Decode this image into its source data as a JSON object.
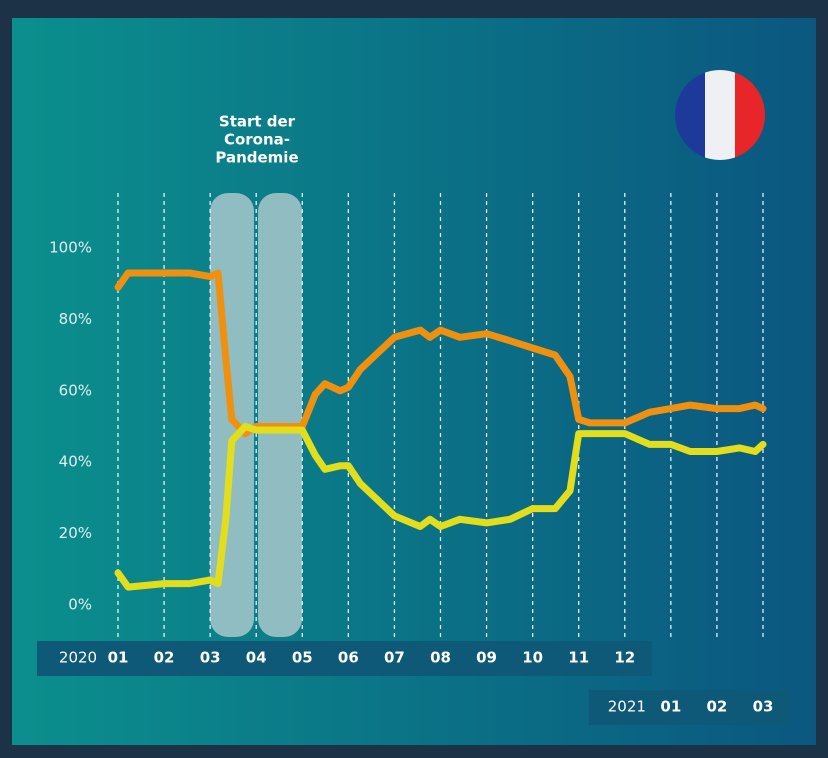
{
  "chart_data": {
    "type": "line",
    "annotation": [
      "Start der",
      "Corona-",
      "Pandemie"
    ],
    "x": [
      0,
      0.22,
      1,
      1.56,
      2,
      2.17,
      2.34,
      2.47,
      2.76,
      3,
      3.52,
      4,
      4.28,
      4.49,
      4.82,
      5,
      5.26,
      6,
      6.56,
      6.77,
      7,
      7.42,
      8,
      8.51,
      9,
      9.49,
      9.81,
      10,
      10.24,
      11,
      11.54,
      12,
      12.42,
      13,
      13.49,
      13.83,
      14
    ],
    "series": [
      {
        "color": "#f0900f",
        "values": [
          89,
          93,
          93,
          93,
          92,
          93,
          69,
          52,
          48,
          50,
          50,
          50,
          59,
          62,
          60,
          61,
          66,
          75,
          77,
          75,
          77,
          75,
          76,
          74,
          72,
          70,
          64,
          52,
          51,
          51,
          54,
          55,
          56,
          55,
          55,
          56,
          55
        ]
      },
      {
        "color": "#e3de1c",
        "values": [
          9,
          5,
          6,
          6,
          7,
          6,
          24,
          46,
          50,
          49,
          49,
          49,
          42,
          38,
          39,
          39,
          34,
          25,
          22,
          24,
          22,
          24,
          23,
          24,
          27,
          27,
          32,
          48,
          48,
          48,
          45,
          45,
          43,
          43,
          44,
          43,
          45
        ]
      }
    ],
    "xlim": [
      0,
      14
    ],
    "x_groups": [
      {
        "year": "2020",
        "ticks": [
          {
            "value": 0,
            "label": "01"
          },
          {
            "value": 1,
            "label": "02"
          },
          {
            "value": 2,
            "label": "03"
          },
          {
            "value": 3,
            "label": "04"
          },
          {
            "value": 4,
            "label": "05"
          },
          {
            "value": 5,
            "label": "06"
          },
          {
            "value": 6,
            "label": "07"
          },
          {
            "value": 7,
            "label": "08"
          },
          {
            "value": 8,
            "label": "09"
          },
          {
            "value": 9,
            "label": "10"
          },
          {
            "value": 10,
            "label": "11"
          },
          {
            "value": 11,
            "label": "12"
          }
        ]
      },
      {
        "year": "2021",
        "ticks": [
          {
            "value": 12,
            "label": "01"
          },
          {
            "value": 13,
            "label": "02"
          },
          {
            "value": 14,
            "label": "03"
          }
        ]
      }
    ],
    "ylim": [
      0,
      100
    ],
    "yticks": [
      {
        "value": 0,
        "label": "0%"
      },
      {
        "value": 20,
        "label": "20%"
      },
      {
        "value": 40,
        "label": "40%"
      },
      {
        "value": 60,
        "label": "60%"
      },
      {
        "value": 80,
        "label": "80%"
      },
      {
        "value": 100,
        "label": "100%"
      }
    ]
  }
}
